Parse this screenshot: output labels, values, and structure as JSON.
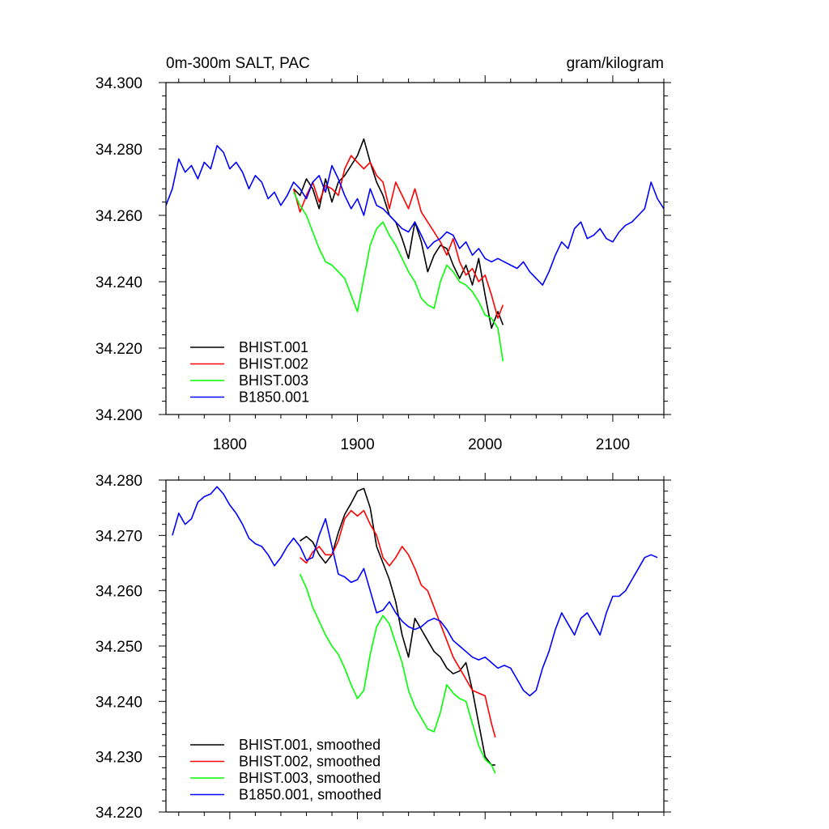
{
  "chart_data": [
    {
      "type": "line",
      "title_left": "0m-300m SALT, PAC",
      "title_right": "gram/kilogram",
      "xlim": [
        1750,
        2140
      ],
      "ylim": [
        34.2,
        34.3
      ],
      "xticks": [
        1800,
        1900,
        2000,
        2100
      ],
      "xtick_labels": [
        "1800",
        "1900",
        "2000",
        "2100"
      ],
      "yticks": [
        34.2,
        34.22,
        34.24,
        34.26,
        34.28,
        34.3
      ],
      "ytick_labels": [
        "34.200",
        "34.220",
        "34.240",
        "34.260",
        "34.280",
        "34.300"
      ],
      "legend_position": "bottom-left",
      "series": [
        {
          "name": "BHIST.001",
          "color": "#000000",
          "x": [
            1850,
            1855,
            1860,
            1865,
            1870,
            1875,
            1880,
            1885,
            1890,
            1895,
            1900,
            1905,
            1910,
            1915,
            1920,
            1925,
            1930,
            1935,
            1940,
            1945,
            1950,
            1955,
            1960,
            1965,
            1970,
            1975,
            1980,
            1985,
            1990,
            1995,
            2000,
            2005,
            2010,
            2014
          ],
          "y": [
            34.268,
            34.266,
            34.271,
            34.268,
            34.262,
            34.271,
            34.264,
            34.27,
            34.272,
            34.275,
            34.278,
            34.283,
            34.276,
            34.27,
            34.266,
            34.26,
            34.258,
            34.253,
            34.247,
            34.258,
            34.252,
            34.243,
            34.248,
            34.251,
            34.25,
            34.245,
            34.241,
            34.245,
            34.239,
            34.247,
            34.236,
            34.226,
            34.231,
            34.227
          ]
        },
        {
          "name": "BHIST.002",
          "color": "#ff0000",
          "x": [
            1850,
            1855,
            1860,
            1865,
            1870,
            1875,
            1880,
            1885,
            1890,
            1895,
            1900,
            1905,
            1910,
            1915,
            1920,
            1925,
            1930,
            1935,
            1940,
            1945,
            1950,
            1955,
            1960,
            1965,
            1970,
            1975,
            1980,
            1985,
            1990,
            1995,
            2000,
            2005,
            2010,
            2014
          ],
          "y": [
            34.268,
            34.261,
            34.266,
            34.27,
            34.264,
            34.269,
            34.268,
            34.266,
            34.274,
            34.278,
            34.276,
            34.274,
            34.276,
            34.272,
            34.27,
            34.262,
            34.27,
            34.266,
            34.262,
            34.268,
            34.261,
            34.258,
            34.255,
            34.252,
            34.248,
            34.253,
            34.246,
            34.242,
            34.244,
            34.24,
            34.242,
            34.236,
            34.229,
            34.233
          ]
        },
        {
          "name": "BHIST.003",
          "color": "#00ff00",
          "x": [
            1850,
            1855,
            1860,
            1865,
            1870,
            1875,
            1880,
            1885,
            1890,
            1895,
            1900,
            1905,
            1910,
            1915,
            1920,
            1925,
            1930,
            1935,
            1940,
            1945,
            1950,
            1955,
            1960,
            1965,
            1970,
            1975,
            1980,
            1985,
            1990,
            1995,
            2000,
            2005,
            2010,
            2014
          ],
          "y": [
            34.267,
            34.263,
            34.26,
            34.255,
            34.25,
            34.246,
            34.245,
            34.243,
            34.241,
            34.236,
            34.231,
            34.241,
            34.251,
            34.256,
            34.258,
            34.254,
            34.251,
            34.247,
            34.243,
            34.24,
            34.235,
            34.233,
            34.232,
            34.24,
            34.245,
            34.243,
            34.24,
            34.239,
            34.237,
            34.234,
            34.23,
            34.229,
            34.226,
            34.216
          ]
        },
        {
          "name": "B1850.001",
          "color": "#0000ff",
          "x": [
            1750,
            1755,
            1760,
            1765,
            1770,
            1775,
            1780,
            1785,
            1790,
            1795,
            1800,
            1805,
            1810,
            1815,
            1820,
            1825,
            1830,
            1835,
            1840,
            1845,
            1850,
            1855,
            1860,
            1865,
            1870,
            1875,
            1880,
            1885,
            1890,
            1895,
            1900,
            1905,
            1910,
            1915,
            1920,
            1925,
            1930,
            1935,
            1940,
            1945,
            1950,
            1955,
            1960,
            1965,
            1970,
            1975,
            1980,
            1985,
            1990,
            1995,
            2000,
            2005,
            2010,
            2015,
            2020,
            2025,
            2030,
            2035,
            2040,
            2045,
            2050,
            2055,
            2060,
            2065,
            2070,
            2075,
            2080,
            2085,
            2090,
            2095,
            2100,
            2105,
            2110,
            2115,
            2120,
            2125,
            2130,
            2135,
            2140
          ],
          "y": [
            34.263,
            34.268,
            34.277,
            34.273,
            34.275,
            34.271,
            34.276,
            34.274,
            34.281,
            34.279,
            34.274,
            34.276,
            34.273,
            34.268,
            34.272,
            34.27,
            34.265,
            34.267,
            34.263,
            34.266,
            34.27,
            34.268,
            34.265,
            34.27,
            34.272,
            34.267,
            34.275,
            34.271,
            34.266,
            34.262,
            34.265,
            34.26,
            34.268,
            34.263,
            34.262,
            34.26,
            34.258,
            34.256,
            34.255,
            34.258,
            34.254,
            34.25,
            34.252,
            34.253,
            34.255,
            34.254,
            34.25,
            34.252,
            34.248,
            34.25,
            34.247,
            34.246,
            34.247,
            34.246,
            34.245,
            34.244,
            34.246,
            34.243,
            34.241,
            34.239,
            34.243,
            34.248,
            34.252,
            34.25,
            34.256,
            34.258,
            34.253,
            34.254,
            34.256,
            34.253,
            34.252,
            34.255,
            34.257,
            34.258,
            34.26,
            34.262,
            34.27,
            34.265,
            34.262
          ]
        }
      ]
    },
    {
      "type": "line",
      "title_left": "",
      "title_right": "",
      "xlim": [
        1750,
        2140
      ],
      "ylim": [
        34.22,
        34.28
      ],
      "xticks": [
        1800,
        1900,
        2000,
        2100
      ],
      "xtick_labels": [
        "",
        "",
        "",
        ""
      ],
      "yticks": [
        34.22,
        34.23,
        34.24,
        34.25,
        34.26,
        34.27,
        34.28
      ],
      "ytick_labels": [
        "34.220",
        "34.230",
        "34.240",
        "34.250",
        "34.260",
        "34.270",
        "34.280"
      ],
      "legend_position": "bottom-left",
      "series": [
        {
          "name": "BHIST.001, smoothed",
          "color": "#000000",
          "x": [
            1855,
            1860,
            1865,
            1870,
            1875,
            1880,
            1885,
            1890,
            1895,
            1900,
            1905,
            1910,
            1915,
            1920,
            1925,
            1930,
            1935,
            1940,
            1945,
            1950,
            1955,
            1960,
            1965,
            1970,
            1975,
            1980,
            1985,
            1990,
            1995,
            2000,
            2005,
            2008
          ],
          "y": [
            34.269,
            34.2698,
            34.2688,
            34.2665,
            34.265,
            34.2665,
            34.2705,
            34.2738,
            34.2758,
            34.278,
            34.2785,
            34.275,
            34.268,
            34.265,
            34.262,
            34.258,
            34.252,
            34.248,
            34.255,
            34.253,
            34.251,
            34.249,
            34.248,
            34.246,
            34.245,
            34.2455,
            34.247,
            34.242,
            34.236,
            34.23,
            34.2285,
            34.2285
          ]
        },
        {
          "name": "BHIST.002, smoothed",
          "color": "#ff0000",
          "x": [
            1855,
            1860,
            1865,
            1870,
            1875,
            1880,
            1885,
            1890,
            1895,
            1900,
            1905,
            1910,
            1915,
            1920,
            1925,
            1930,
            1935,
            1940,
            1945,
            1950,
            1955,
            1960,
            1965,
            1970,
            1975,
            1980,
            1985,
            1990,
            1995,
            2000,
            2005,
            2008
          ],
          "y": [
            34.266,
            34.265,
            34.267,
            34.268,
            34.2665,
            34.2665,
            34.269,
            34.273,
            34.2745,
            34.2735,
            34.2745,
            34.272,
            34.27,
            34.266,
            34.2645,
            34.266,
            34.268,
            34.2665,
            34.264,
            34.261,
            34.26,
            34.257,
            34.254,
            34.251,
            34.248,
            34.246,
            34.244,
            34.242,
            34.2415,
            34.241,
            34.236,
            34.2335
          ]
        },
        {
          "name": "BHIST.003, smoothed",
          "color": "#00ff00",
          "x": [
            1855,
            1860,
            1865,
            1870,
            1875,
            1880,
            1885,
            1890,
            1895,
            1900,
            1905,
            1910,
            1915,
            1920,
            1925,
            1930,
            1935,
            1940,
            1945,
            1950,
            1955,
            1960,
            1965,
            1970,
            1975,
            1980,
            1985,
            1990,
            1995,
            2000,
            2005,
            2008
          ],
          "y": [
            34.263,
            34.2605,
            34.257,
            34.2545,
            34.252,
            34.25,
            34.2485,
            34.246,
            34.243,
            34.2405,
            34.242,
            34.2485,
            34.2535,
            34.2555,
            34.254,
            34.2505,
            34.247,
            34.242,
            34.239,
            34.237,
            34.235,
            34.2345,
            34.238,
            34.243,
            34.2415,
            34.2405,
            34.24,
            34.236,
            34.232,
            34.2295,
            34.2285,
            34.227
          ]
        },
        {
          "name": "B1850.001, smoothed",
          "color": "#0000ff",
          "x": [
            1755,
            1760,
            1765,
            1770,
            1775,
            1780,
            1785,
            1790,
            1795,
            1800,
            1805,
            1810,
            1815,
            1820,
            1825,
            1830,
            1835,
            1840,
            1845,
            1850,
            1855,
            1860,
            1865,
            1870,
            1875,
            1880,
            1885,
            1890,
            1895,
            1900,
            1905,
            1910,
            1915,
            1920,
            1925,
            1930,
            1935,
            1940,
            1945,
            1950,
            1955,
            1960,
            1965,
            1970,
            1975,
            1980,
            1985,
            1990,
            1995,
            2000,
            2005,
            2010,
            2015,
            2020,
            2025,
            2030,
            2035,
            2040,
            2045,
            2050,
            2055,
            2060,
            2065,
            2070,
            2075,
            2080,
            2085,
            2090,
            2095,
            2100,
            2105,
            2110,
            2115,
            2120,
            2125,
            2130,
            2135
          ],
          "y": [
            34.27,
            34.274,
            34.272,
            34.273,
            34.276,
            34.277,
            34.2775,
            34.2788,
            34.2775,
            34.2755,
            34.274,
            34.272,
            34.2695,
            34.2685,
            34.268,
            34.2665,
            34.2645,
            34.266,
            34.268,
            34.2695,
            34.268,
            34.2655,
            34.266,
            34.27,
            34.273,
            34.268,
            34.263,
            34.2625,
            34.2615,
            34.262,
            34.264,
            34.26,
            34.256,
            34.2565,
            34.258,
            34.256,
            34.2545,
            34.2535,
            34.253,
            34.2535,
            34.2545,
            34.255,
            34.2545,
            34.253,
            34.251,
            34.25,
            34.249,
            34.248,
            34.2475,
            34.248,
            34.247,
            34.246,
            34.2465,
            34.246,
            34.244,
            34.242,
            34.241,
            34.242,
            34.246,
            34.249,
            34.253,
            34.256,
            34.254,
            34.252,
            34.255,
            34.256,
            34.254,
            34.252,
            34.256,
            34.259,
            34.259,
            34.26,
            34.262,
            34.264,
            34.266,
            34.2665,
            34.266
          ]
        }
      ]
    }
  ]
}
